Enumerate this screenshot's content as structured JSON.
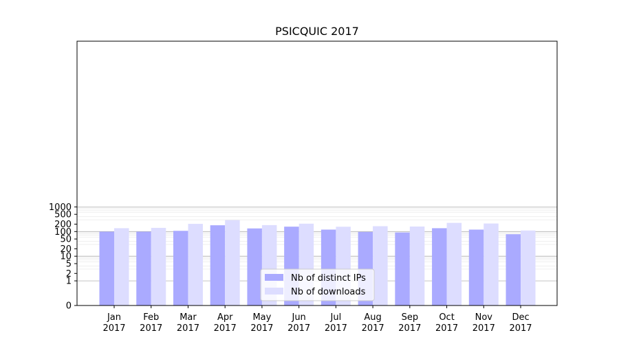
{
  "chart_data": {
    "type": "bar",
    "title": "PSICQUIC 2017",
    "xlabel": "",
    "ylabel": "",
    "scale": "symlog",
    "ylim": [
      0,
      1300
    ],
    "y_ticks": [
      0,
      1,
      2,
      5,
      10,
      20,
      50,
      100,
      200,
      500,
      1000
    ],
    "y_tick_labels": [
      "0",
      "1",
      "2",
      "5",
      "10",
      "20",
      "50",
      "100",
      "200",
      "500",
      "1000"
    ],
    "categories": [
      {
        "month": "Jan",
        "year": "2017"
      },
      {
        "month": "Feb",
        "year": "2017"
      },
      {
        "month": "Mar",
        "year": "2017"
      },
      {
        "month": "Apr",
        "year": "2017"
      },
      {
        "month": "May",
        "year": "2017"
      },
      {
        "month": "Jun",
        "year": "2017"
      },
      {
        "month": "Jul",
        "year": "2017"
      },
      {
        "month": "Aug",
        "year": "2017"
      },
      {
        "month": "Sep",
        "year": "2017"
      },
      {
        "month": "Oct",
        "year": "2017"
      },
      {
        "month": "Nov",
        "year": "2017"
      },
      {
        "month": "Dec",
        "year": "2017"
      }
    ],
    "series": [
      {
        "name": "Nb of distinct IPs",
        "color": "#aaaaff",
        "values": [
          99,
          99,
          107,
          180,
          134,
          158,
          120,
          97,
          92,
          137,
          120,
          78
        ]
      },
      {
        "name": "Nb of downloads",
        "color": "#ddddff",
        "values": [
          137,
          141,
          205,
          290,
          183,
          209,
          157,
          165,
          160,
          225,
          212,
          110
        ]
      }
    ],
    "grid": true,
    "legend_position": "lower-center"
  }
}
